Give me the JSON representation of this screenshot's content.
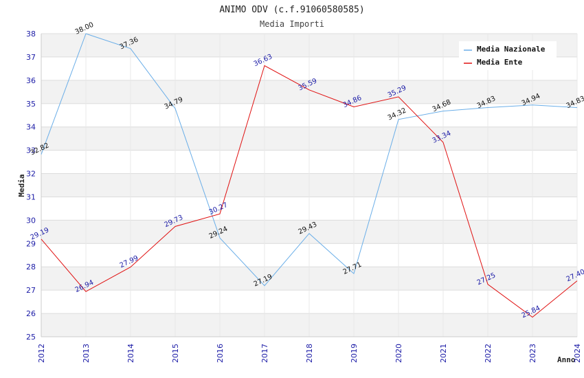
{
  "chart_data": {
    "type": "line",
    "title": "ANIMO ODV (c.f.91060580585)",
    "subtitle": "Media Importi",
    "ylabel": "Media",
    "xlabel": "Anno",
    "ylim": [
      25,
      38
    ],
    "yticks": [
      25,
      26,
      27,
      28,
      29,
      30,
      31,
      32,
      33,
      34,
      35,
      36,
      37,
      38
    ],
    "categories": [
      "2012",
      "2013",
      "2014",
      "2015",
      "2016",
      "2017",
      "2018",
      "2019",
      "2020",
      "2021",
      "2022",
      "2023",
      "2024"
    ],
    "series": [
      {
        "name": "Media Nazionale",
        "color": "#6aaee8",
        "values": [
          32.82,
          38.0,
          37.36,
          34.79,
          29.24,
          27.19,
          29.43,
          27.71,
          34.32,
          34.68,
          34.83,
          34.94,
          34.83
        ],
        "labels": [
          "32.82",
          "38.00",
          "37.36",
          "34.79",
          "29.24",
          "27.19",
          "29.43",
          "27.71",
          "34.32",
          "34.68",
          "34.83",
          "34.94",
          "34.83"
        ]
      },
      {
        "name": "Media Ente",
        "color": "#e01010",
        "values": [
          29.19,
          26.94,
          27.99,
          29.73,
          30.27,
          36.63,
          35.59,
          34.86,
          35.29,
          33.34,
          27.25,
          25.84,
          27.4
        ],
        "labels": [
          "29.19",
          "26.94",
          "27.99",
          "29.73",
          "30.27",
          "36.63",
          "35.59",
          "34.86",
          "35.29",
          "33.34",
          "27.25",
          "25.84",
          "27.40"
        ]
      }
    ],
    "legend": "top-right",
    "grid": true
  }
}
